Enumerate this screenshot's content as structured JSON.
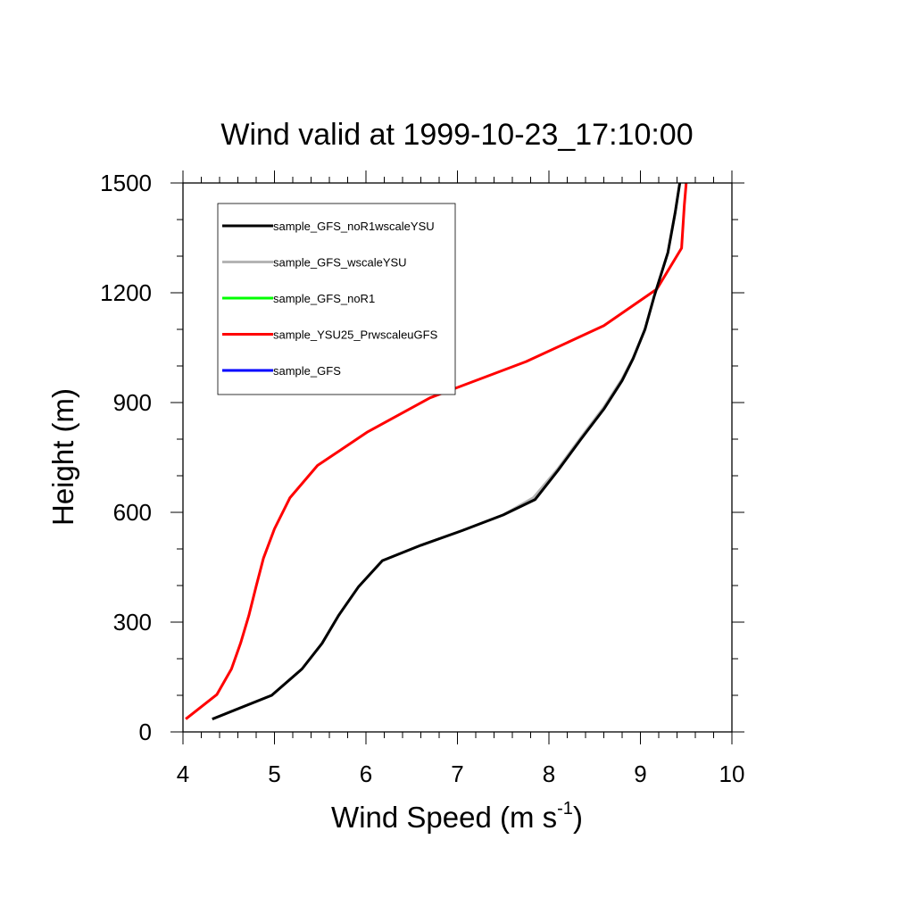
{
  "chart_data": {
    "type": "line",
    "title": "Wind valid at 1999-10-23_17:10:00",
    "xlabel": "Wind Speed (m s",
    "xlabel_superscript": "-1",
    "xlabel_suffix": ")",
    "ylabel": "Height (m)",
    "xlim": [
      4,
      10
    ],
    "ylim": [
      0,
      1500
    ],
    "xticks": [
      "4",
      "5",
      "6",
      "7",
      "8",
      "9",
      "10"
    ],
    "yticks": [
      "0",
      "300",
      "600",
      "900",
      "1200",
      "1500"
    ],
    "legend_position": "top-left",
    "series": [
      {
        "name": "sample_GFS_noR1wscaleYSU",
        "color": "#000000",
        "points": [
          [
            4.32,
            35
          ],
          [
            4.97,
            100
          ],
          [
            5.3,
            172
          ],
          [
            5.52,
            242
          ],
          [
            5.7,
            318
          ],
          [
            5.92,
            397
          ],
          [
            6.18,
            468
          ],
          [
            6.6,
            510
          ],
          [
            7.05,
            550
          ],
          [
            7.5,
            593
          ],
          [
            7.85,
            635
          ],
          [
            8.1,
            715
          ],
          [
            8.35,
            800
          ],
          [
            8.6,
            882
          ],
          [
            8.8,
            960
          ],
          [
            8.92,
            1020
          ],
          [
            9.05,
            1100
          ],
          [
            9.15,
            1190
          ],
          [
            9.3,
            1310
          ],
          [
            9.38,
            1420
          ],
          [
            9.43,
            1500
          ]
        ]
      },
      {
        "name": "sample_GFS_wscaleYSU",
        "color": "#b4b4b4",
        "points": [
          [
            4.32,
            35
          ],
          [
            4.97,
            100
          ],
          [
            5.3,
            172
          ],
          [
            5.52,
            242
          ],
          [
            5.7,
            318
          ],
          [
            5.92,
            397
          ],
          [
            6.18,
            468
          ],
          [
            6.6,
            510
          ],
          [
            7.05,
            550
          ],
          [
            7.5,
            593
          ],
          [
            7.83,
            640
          ],
          [
            8.1,
            720
          ],
          [
            8.35,
            805
          ],
          [
            8.6,
            887
          ],
          [
            8.8,
            965
          ],
          [
            8.92,
            1022
          ],
          [
            9.05,
            1100
          ],
          [
            9.15,
            1190
          ],
          [
            9.3,
            1310
          ],
          [
            9.38,
            1420
          ],
          [
            9.43,
            1500
          ]
        ]
      },
      {
        "name": "sample_GFS_noR1",
        "color": "#00ff00",
        "points": []
      },
      {
        "name": "sample_YSU25_PrwscaleuGFS",
        "color": "#ff0000",
        "points": [
          [
            4.03,
            35
          ],
          [
            4.37,
            102
          ],
          [
            4.53,
            172
          ],
          [
            4.63,
            243
          ],
          [
            4.72,
            318
          ],
          [
            4.8,
            398
          ],
          [
            4.88,
            475
          ],
          [
            5.0,
            555
          ],
          [
            5.17,
            640
          ],
          [
            5.47,
            728
          ],
          [
            6.02,
            820
          ],
          [
            6.7,
            913
          ],
          [
            7.75,
            1012
          ],
          [
            8.6,
            1110
          ],
          [
            9.18,
            1210
          ],
          [
            9.45,
            1322
          ],
          [
            9.48,
            1440
          ],
          [
            9.5,
            1500
          ]
        ]
      },
      {
        "name": "sample_GFS",
        "color": "#0000ff",
        "points": []
      }
    ]
  }
}
